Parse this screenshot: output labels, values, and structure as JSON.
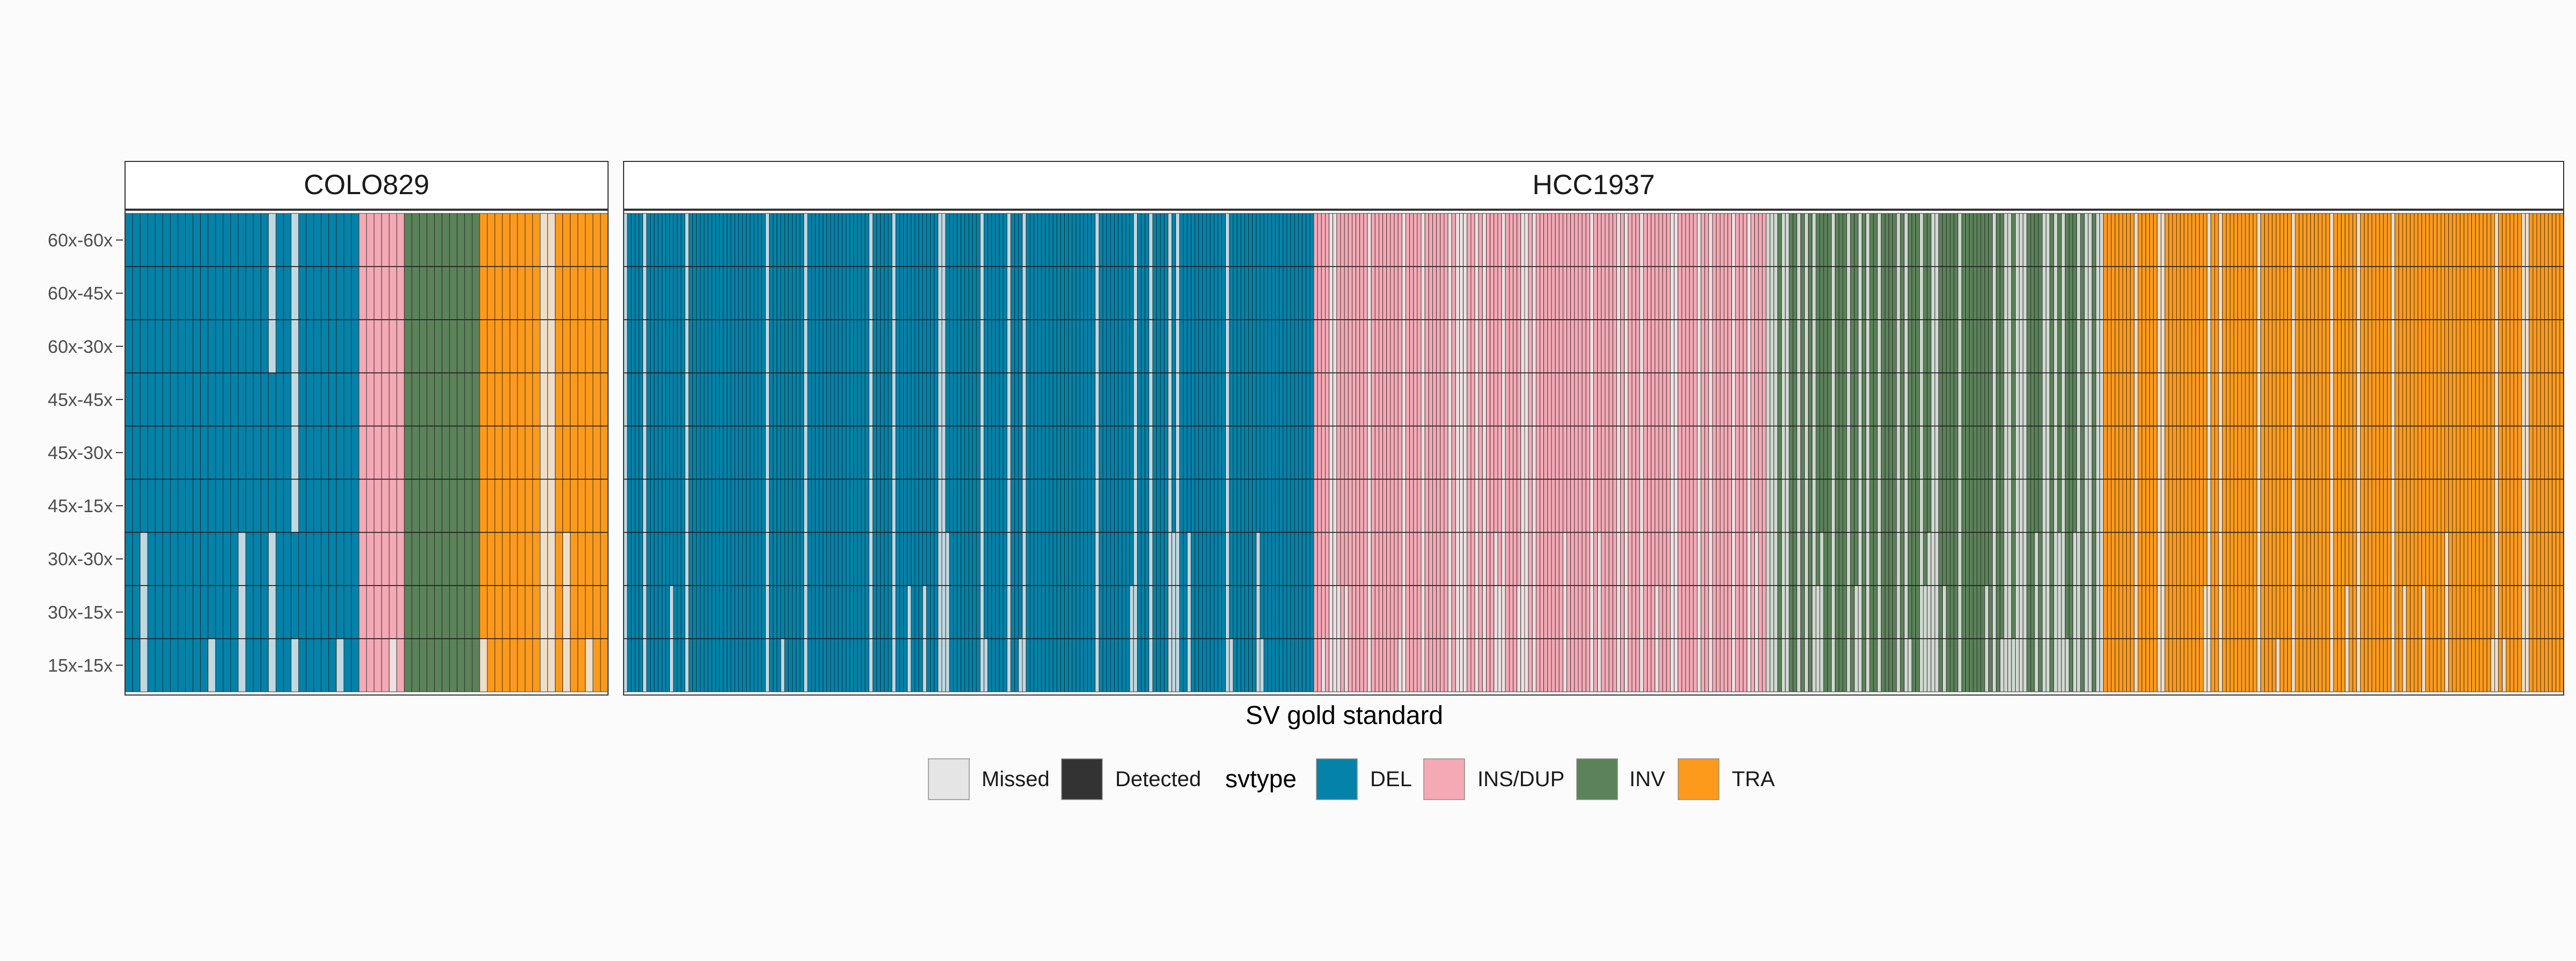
{
  "chart_data": {
    "type": "heatmap",
    "xlabel": "SV gold standard",
    "ylabel": "",
    "rows": [
      "60x-60x",
      "60x-45x",
      "60x-30x",
      "45x-45x",
      "45x-30x",
      "45x-15x",
      "30x-30x",
      "30x-15x",
      "15x-15x"
    ],
    "facets": [
      {
        "name": "COLO829",
        "groups": [
          {
            "svtype": "DEL",
            "count": 31
          },
          {
            "svtype": "INS/DUP",
            "count": 6
          },
          {
            "svtype": "INV",
            "count": 10
          },
          {
            "svtype": "TRA",
            "count": 17
          }
        ],
        "missed": [
          {
            "svtype": "DEL",
            "index": 19,
            "from_row": 0,
            "to_row": 3
          },
          {
            "svtype": "DEL",
            "index": 22,
            "from_row": 0,
            "to_row": 6
          },
          {
            "svtype": "DEL",
            "index": 2,
            "from_row": 6,
            "to_row": 9
          },
          {
            "svtype": "DEL",
            "index": 15,
            "from_row": 6,
            "to_row": 9
          },
          {
            "svtype": "DEL",
            "index": 19,
            "from_row": 6,
            "to_row": 9
          },
          {
            "svtype": "DEL",
            "index": 11,
            "from_row": 8,
            "to_row": 9
          },
          {
            "svtype": "DEL",
            "index": 22,
            "from_row": 8,
            "to_row": 9
          },
          {
            "svtype": "DEL",
            "index": 28,
            "from_row": 8,
            "to_row": 9
          },
          {
            "svtype": "INS/DUP",
            "index": 4,
            "from_row": 8,
            "to_row": 9
          },
          {
            "svtype": "TRA",
            "index": 0,
            "from_row": 8,
            "to_row": 9
          },
          {
            "svtype": "TRA",
            "index": 8,
            "from_row": 0,
            "to_row": 9
          },
          {
            "svtype": "TRA",
            "index": 9,
            "from_row": 0,
            "to_row": 9
          },
          {
            "svtype": "TRA",
            "index": 11,
            "from_row": 6,
            "to_row": 9
          },
          {
            "svtype": "TRA",
            "index": 14,
            "from_row": 8,
            "to_row": 9
          }
        ]
      },
      {
        "name": "HCC1937",
        "groups": [
          {
            "svtype": "DEL",
            "count": 180
          },
          {
            "svtype": "INS/DUP",
            "count": 118
          },
          {
            "svtype": "INV",
            "count": 88
          },
          {
            "svtype": "TRA",
            "count": 120
          }
        ],
        "missed_fraction": {
          "DEL": 0.1,
          "INS/DUP": 0.22,
          "INV": 0.3,
          "TRA": 0.1
        }
      }
    ],
    "legend": {
      "status": [
        "Missed",
        "Detected"
      ],
      "title": "svtype",
      "entries": [
        "DEL",
        "INS/DUP",
        "INV",
        "TRA"
      ],
      "position": "bottom"
    }
  },
  "colors": {
    "DEL": "#0482a9",
    "INS/DUP": "#f4a9b5",
    "INV": "#5b8259",
    "TRA": "#fd9a1c",
    "missed_tile": "#ebebeb",
    "missed_key": "#e5e5e5",
    "detected_key": "#333333",
    "background": "#fbfbfb"
  }
}
